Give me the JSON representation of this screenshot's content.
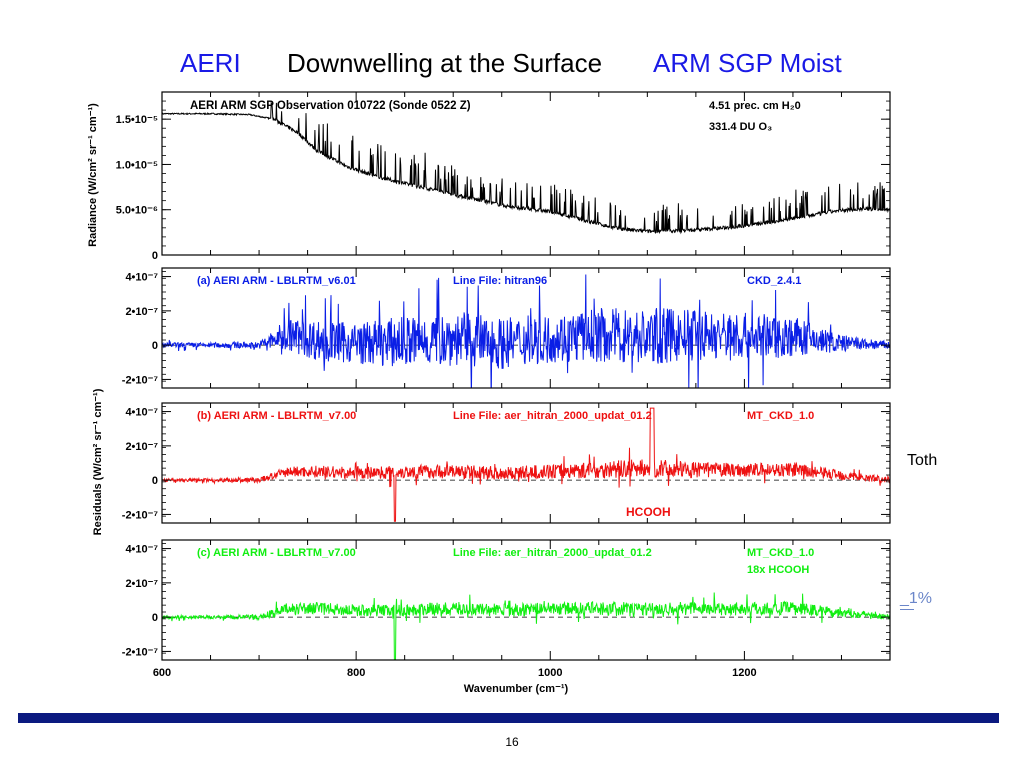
{
  "slide": {
    "title_aeri": "AERI",
    "title_main": "Downwelling at the Surface",
    "title_arm": "ARM  SGP Moist",
    "note_toth": "Toth",
    "note_pct": "_1%",
    "page_number": "16"
  },
  "chart_data": [
    {
      "type": "line",
      "panel": "radiance",
      "title": "AERI  ARM SGP Observation 010722  (Sonde 0522 Z)",
      "note_line1": "4.51 prec. cm H₂0",
      "note_line2": "331.4 DU O₃",
      "ylabel": "Radiance (W/cm² sr⁻¹ cm⁻¹)",
      "xlim": [
        600,
        1350
      ],
      "ylim": [
        0,
        1.8e-05
      ],
      "yticks": [
        0,
        5e-06,
        1e-05,
        1.5e-05
      ],
      "ytick_labels": [
        "0",
        "5.0•10⁻⁶",
        "1.0•10⁻⁵",
        "1.5•10⁻⁵"
      ],
      "color": "#000000",
      "series": [
        {
          "x": [
            600,
            650,
            690,
            715,
            740,
            760,
            790,
            820,
            850,
            880,
            920,
            960,
            1000,
            1040,
            1070,
            1100,
            1140,
            1180,
            1220,
            1260,
            1290,
            1320,
            1350
          ],
          "values": [
            1.56e-05,
            1.56e-05,
            1.55e-05,
            1.5e-05,
            1.35e-05,
            1.15e-05,
            9.8e-06,
            8.7e-06,
            7.9e-06,
            7.2e-06,
            6.2e-06,
            5.3e-06,
            4.8e-06,
            3.7e-06,
            2.9e-06,
            2.6e-06,
            2.7e-06,
            3e-06,
            3.5e-06,
            4.2e-06,
            4.8e-06,
            5.1e-06,
            5e-06
          ]
        }
      ]
    },
    {
      "type": "line",
      "panel": "residual_a",
      "label_left": "(a)  AERI  ARM - LBLRTM_v6.01",
      "label_mid": "Line File: hitran96",
      "label_right": "CKD_2.4.1",
      "xlim": [
        600,
        1350
      ],
      "ylim": [
        -2.5e-07,
        4.5e-07
      ],
      "yticks": [
        -2e-07,
        0,
        2e-07,
        4e-07
      ],
      "ytick_labels": [
        "-2•10⁻⁷",
        "0",
        "2•10⁻⁷",
        "4•10⁻⁷"
      ],
      "color": "#0a1ee6",
      "series": [
        {
          "x": [
            600,
            650,
            700,
            730,
            760,
            800,
            850,
            900,
            950,
            1000,
            1050,
            1100,
            1150,
            1200,
            1250,
            1300,
            1350
          ],
          "values": [
            0,
            0,
            0,
            6e-08,
            3e-08,
            1e-08,
            2e-08,
            4e-08,
            1e-08,
            4e-08,
            6e-08,
            5e-08,
            6e-08,
            5e-08,
            5e-08,
            1e-08,
            0
          ],
          "amplitude": [
            1.5e-08,
            1.5e-08,
            2e-08,
            1e-07,
            1.2e-07,
            1.2e-07,
            1.5e-07,
            1.6e-07,
            1.5e-07,
            1.4e-07,
            1.6e-07,
            1.7e-07,
            1.5e-07,
            1.4e-07,
            1.2e-07,
            5e-08,
            2e-08
          ]
        }
      ]
    },
    {
      "type": "line",
      "panel": "residual_b",
      "label_left": "(b)  AERI  ARM - LBLRTM_v7.00",
      "label_mid": "Line File: aer_hitran_2000_updat_01.2",
      "label_right": "MT_CKD_1.0",
      "annotation": "HCOOH",
      "ylabel": "Residuals (W/cm² sr⁻¹ cm⁻¹)",
      "xlim": [
        600,
        1350
      ],
      "ylim": [
        -2.5e-07,
        4.5e-07
      ],
      "yticks": [
        -2e-07,
        0,
        2e-07,
        4e-07
      ],
      "ytick_labels": [
        "-2•10⁻⁷",
        "0",
        "2•10⁻⁷",
        "4•10⁻⁷"
      ],
      "color": "#ee1111",
      "series": [
        {
          "x": [
            600,
            650,
            700,
            730,
            760,
            800,
            850,
            900,
            950,
            1000,
            1050,
            1100,
            1150,
            1200,
            1250,
            1300,
            1350
          ],
          "values": [
            0,
            0,
            0,
            5e-08,
            5e-08,
            4e-08,
            5e-08,
            5e-08,
            4e-08,
            5e-08,
            6e-08,
            7e-08,
            6e-08,
            6e-08,
            6e-08,
            3e-08,
            0
          ],
          "amplitude": [
            1e-08,
            1e-08,
            1.5e-08,
            3e-08,
            3.5e-08,
            3.5e-08,
            4e-08,
            4e-08,
            4e-08,
            4e-08,
            5e-08,
            5.5e-08,
            4.5e-08,
            4e-08,
            4e-08,
            3e-08,
            1.5e-08
          ]
        }
      ]
    },
    {
      "type": "line",
      "panel": "residual_c",
      "label_left": "(c)  AERI  ARM - LBLRTM_v7.00",
      "label_mid": "Line File: aer_hitran_2000_updat_01.2",
      "label_right": "MT_CKD_1.0",
      "label_right2": "18x HCOOH",
      "xlabel": "Wavenumber (cm⁻¹)",
      "xlim": [
        600,
        1350
      ],
      "xticks": [
        600,
        800,
        1000,
        1200
      ],
      "xtick_labels": [
        "600",
        "800",
        "1000",
        "1200"
      ],
      "ylim": [
        -2.5e-07,
        4.5e-07
      ],
      "yticks": [
        -2e-07,
        0,
        2e-07,
        4e-07
      ],
      "ytick_labels": [
        "-2•10⁻⁷",
        "0",
        "2•10⁻⁷",
        "4•10⁻⁷"
      ],
      "color": "#11ee11",
      "series": [
        {
          "x": [
            600,
            650,
            700,
            730,
            760,
            800,
            850,
            900,
            950,
            1000,
            1050,
            1100,
            1150,
            1200,
            1250,
            1300,
            1350
          ],
          "values": [
            0,
            0,
            0,
            5e-08,
            5e-08,
            4e-08,
            4e-08,
            5e-08,
            4e-08,
            5e-08,
            5e-08,
            5e-08,
            5e-08,
            5e-08,
            5e-08,
            3e-08,
            0
          ],
          "amplitude": [
            1e-08,
            1e-08,
            1.5e-08,
            3.5e-08,
            3.5e-08,
            3.5e-08,
            3.5e-08,
            4e-08,
            4e-08,
            3.5e-08,
            4e-08,
            4e-08,
            4e-08,
            4e-08,
            4e-08,
            3e-08,
            1.5e-08
          ]
        }
      ]
    }
  ]
}
